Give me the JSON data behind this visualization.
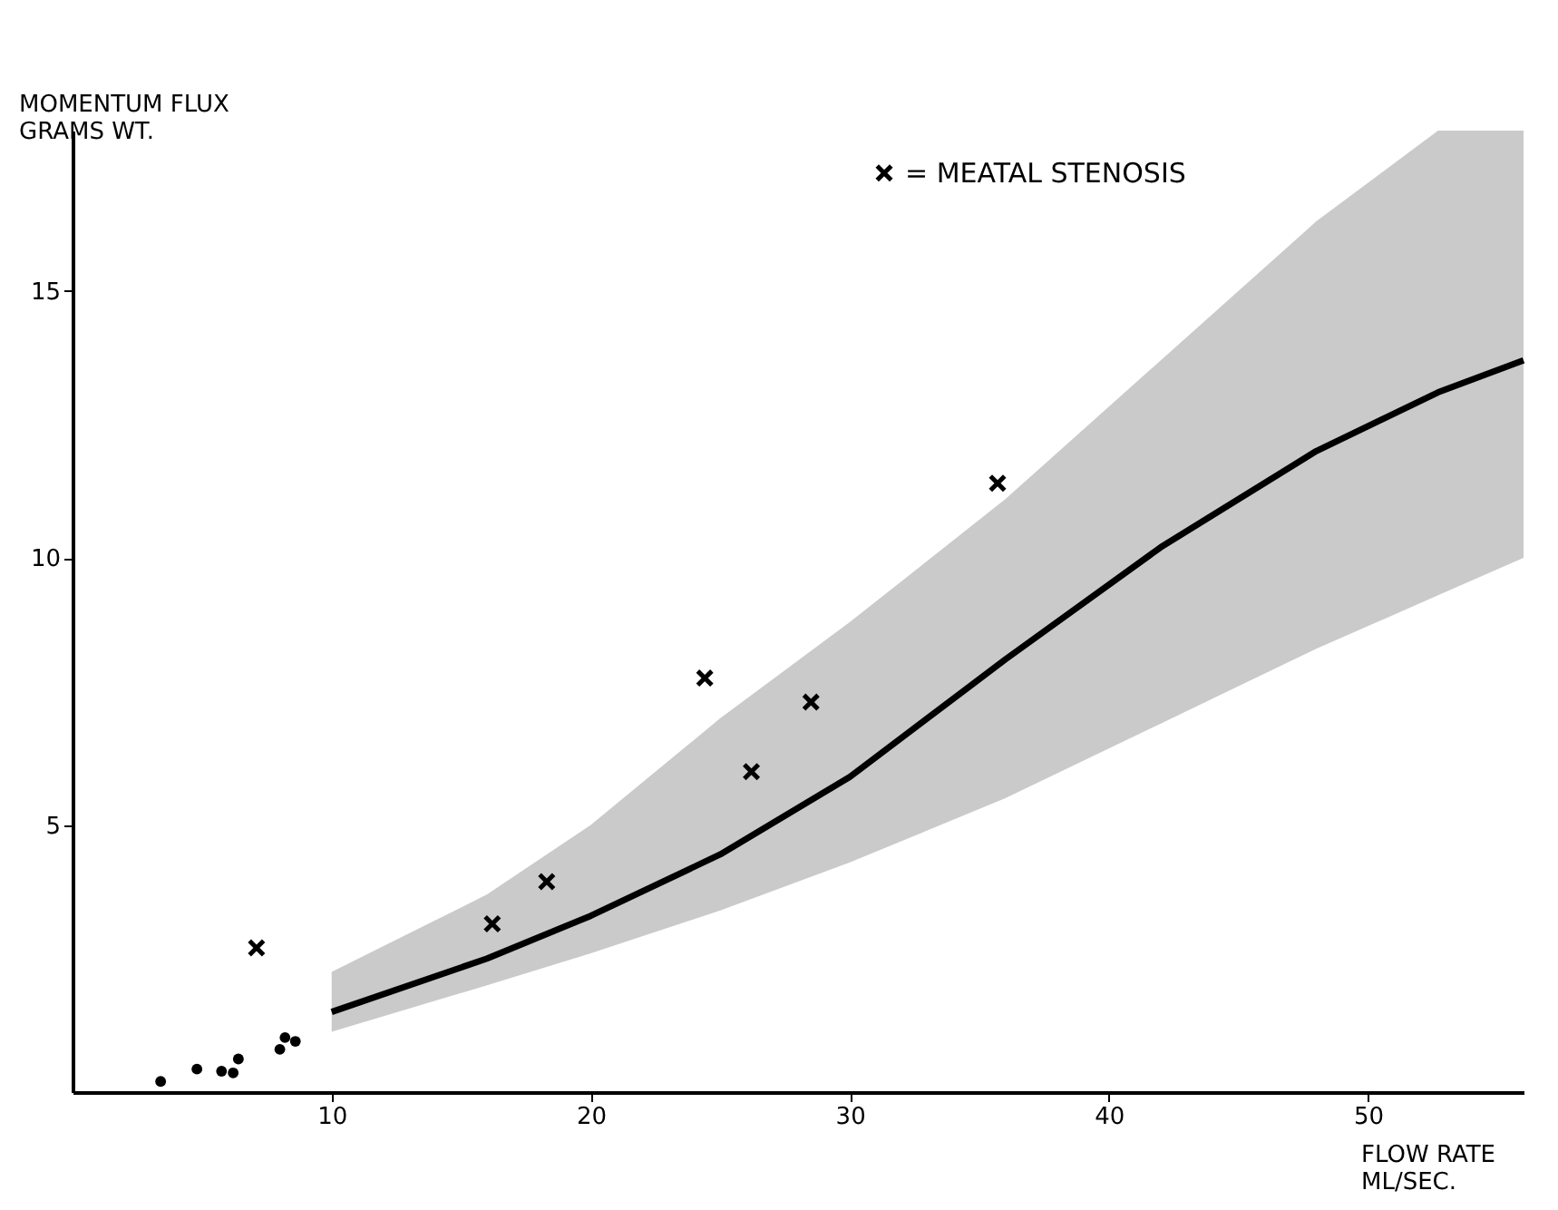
{
  "chart_data": {
    "type": "scatter",
    "xlabel": "FLOW RATE\nML/SEC.",
    "ylabel": "MOMENTUM FLUX\nGRAMS WT.",
    "xlim": [
      0,
      56
    ],
    "ylim": [
      0,
      18
    ],
    "xticks": [
      10,
      20,
      30,
      40,
      50
    ],
    "yticks": [
      5,
      10,
      15
    ],
    "grid": false,
    "legend": "top",
    "series": [
      {
        "marker": "circle",
        "color": "#000000",
        "x": [
          3.4,
          4.8,
          5.75,
          6.2,
          6.4,
          8.0,
          8.2,
          8.6
        ],
        "values": [
          0.2,
          0.43,
          0.39,
          0.36,
          0.62,
          0.8,
          1.02,
          0.95
        ]
      },
      {
        "name": "= MEATAL STENOSIS",
        "marker": "cross",
        "color": "#000000",
        "x": [
          7.1,
          16.2,
          18.3,
          24.4,
          26.2,
          28.5,
          35.7
        ],
        "values": [
          2.7,
          3.15,
          3.94,
          7.75,
          6.0,
          7.3,
          11.4
        ]
      },
      {
        "type": "line",
        "marker": "none",
        "line_style": "solid",
        "color": "#000000",
        "x": [
          10,
          16,
          20,
          25,
          30,
          36,
          42,
          48,
          52.7,
          56
        ],
        "values": [
          1.5,
          2.5,
          3.3,
          4.45,
          5.9,
          8.1,
          10.2,
          12.0,
          13.1,
          13.7
        ],
        "lower": [
          1.13,
          2.0,
          2.6,
          3.4,
          4.3,
          5.5,
          6.9,
          8.3,
          9.3,
          10.0
        ],
        "upper": [
          2.25,
          3.7,
          5.0,
          7.0,
          8.8,
          11.1,
          13.7,
          16.3,
          18,
          18
        ]
      }
    ]
  }
}
